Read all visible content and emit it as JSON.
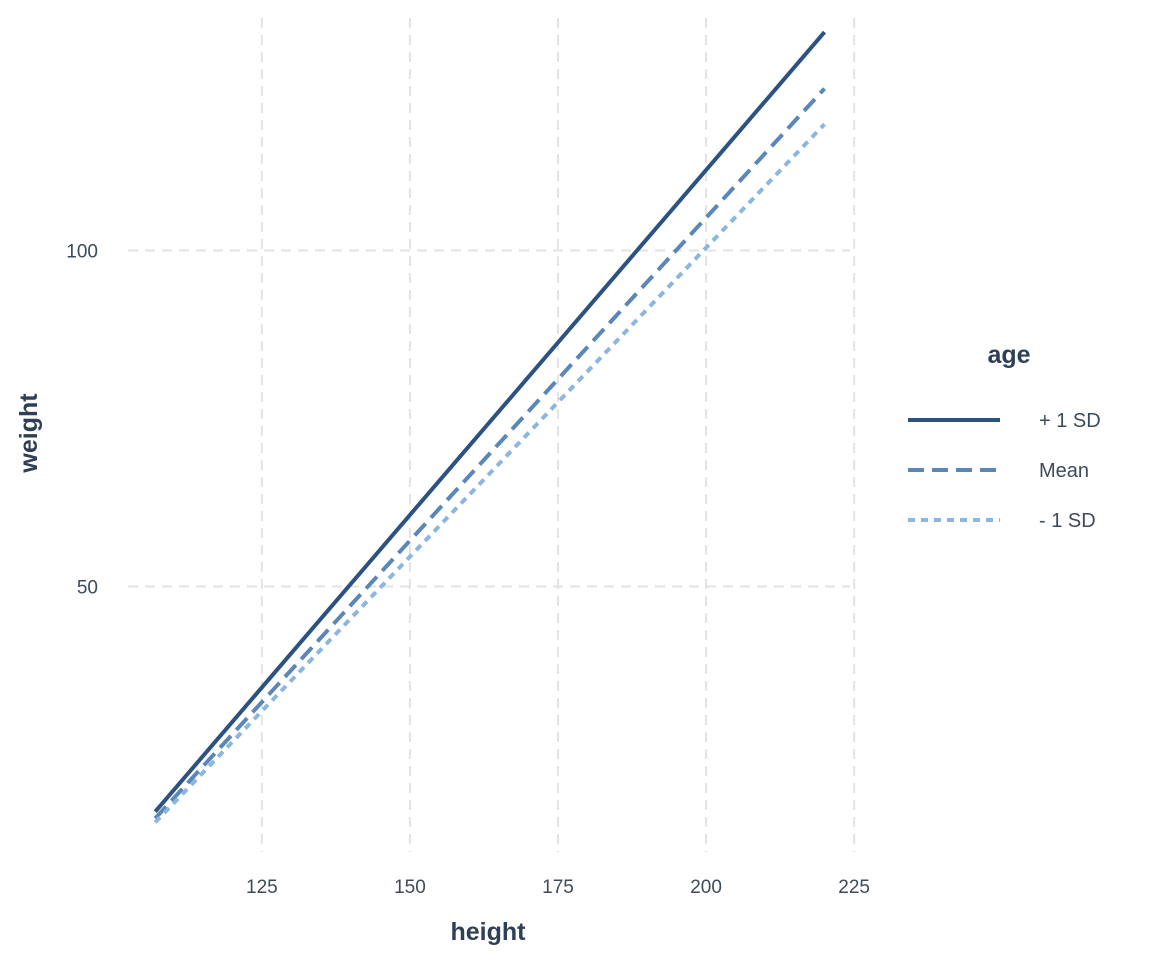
{
  "chart_data": {
    "type": "line",
    "title": "",
    "xlabel": "height",
    "ylabel": "weight",
    "xlim": [
      102.4,
      224.3
    ],
    "ylim": [
      10.5,
      134.6
    ],
    "x_ticks": [
      125,
      150,
      175,
      200,
      225
    ],
    "y_ticks": [
      50,
      100
    ],
    "grid": true,
    "legend": {
      "title": "age",
      "position": "right"
    },
    "x": [
      107,
      220
    ],
    "series": [
      {
        "name": "+ 1 SD",
        "values": [
          16.5,
          132.5
        ],
        "color": "#2c5282",
        "line_style": "solid"
      },
      {
        "name": "Mean",
        "values": [
          15.5,
          124.1
        ],
        "color": "#5a86b8",
        "line_style": "dashed"
      },
      {
        "name": "- 1 SD",
        "values": [
          14.9,
          118.8
        ],
        "color": "#8ab6e0",
        "line_style": "dotted"
      }
    ]
  }
}
